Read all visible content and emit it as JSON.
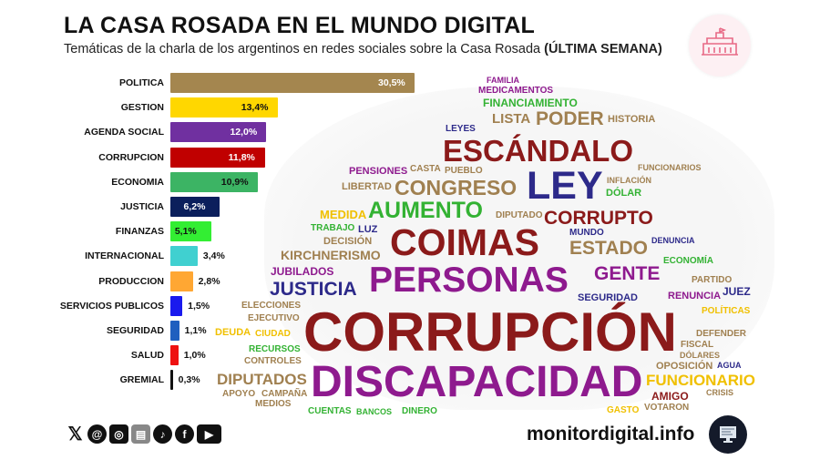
{
  "header": {
    "title": "LA CASA ROSADA EN EL MUNDO DIGITAL",
    "subtitle": "Temáticas de la charla de los argentinos en redes sociales sobre la Casa Rosada",
    "subtitle_bold": "(ÚLTIMA SEMANA)"
  },
  "chart_data": {
    "type": "bar",
    "orientation": "horizontal",
    "unit": "%",
    "categories": [
      "POLITICA",
      "GESTION",
      "AGENDA SOCIAL",
      "CORRUPCION",
      "ECONOMIA",
      "JUSTICIA",
      "FINANZAS",
      "INTERNACIONAL",
      "PRODUCCION",
      "SERVICIOS PUBLICOS",
      "SEGURIDAD",
      "SALUD",
      "GREMIAL"
    ],
    "values": [
      30.5,
      13.4,
      12.0,
      11.8,
      10.9,
      6.2,
      5.1,
      3.4,
      2.8,
      1.5,
      1.1,
      1.0,
      0.3
    ],
    "labels": [
      "30,5%",
      "13,4%",
      "12,0%",
      "11,8%",
      "10,9%",
      "6,2%",
      "5,1%",
      "3,4%",
      "2,8%",
      "1,5%",
      "1,1%",
      "1,0%",
      "0,3%"
    ],
    "colors": [
      "#a4864f",
      "#ffd700",
      "#7030a0",
      "#c00000",
      "#3cb464",
      "#0b1f5c",
      "#33ee33",
      "#40d0d0",
      "#ffa733",
      "#1a1aee",
      "#1f5fbf",
      "#ee1111",
      "#111111"
    ],
    "label_colors": [
      "#fff",
      "#111",
      "#fff",
      "#fff",
      "#111",
      "#fff",
      "#111",
      "#111",
      "#111",
      "#111",
      "#111",
      "#111",
      "#111"
    ],
    "grid": false,
    "legend": "none"
  },
  "wordcloud": {
    "words": [
      {
        "t": "CORRUPCIÓN",
        "c": "#8b1a1a"
      },
      {
        "t": "DISCAPACIDAD",
        "c": "#8e1a8e"
      },
      {
        "t": "PERSONAS",
        "c": "#8e1a8e"
      },
      {
        "t": "COIMAS",
        "c": "#8b1a1a"
      },
      {
        "t": "LEY",
        "c": "#2d2a8a"
      },
      {
        "t": "ESCÁNDALO",
        "c": "#8b1a1a"
      },
      {
        "t": "CONGRESO",
        "c": "#a08050"
      },
      {
        "t": "AUMENTO",
        "c": "#33b233"
      },
      {
        "t": "CORRUPTO",
        "c": "#8b1a1a"
      },
      {
        "t": "ESTADO",
        "c": "#a08050"
      },
      {
        "t": "GENTE",
        "c": "#8e1a8e"
      },
      {
        "t": "PODER",
        "c": "#a08050"
      },
      {
        "t": "JUSTICIA",
        "c": "#2d2a8a"
      },
      {
        "t": "KIRCHNERISMO",
        "c": "#a08050"
      },
      {
        "t": "JUBILADOS",
        "c": "#8e1a8e"
      },
      {
        "t": "DIPUTADOS",
        "c": "#a08050"
      },
      {
        "t": "FUNCIONARIO",
        "c": "#f0c000"
      },
      {
        "t": "FINANCIAMIENTO",
        "c": "#33b233"
      },
      {
        "t": "LISTA",
        "c": "#a08050"
      },
      {
        "t": "MEDICAMENTOS",
        "c": "#8e1a8e"
      },
      {
        "t": "HISTORIA",
        "c": "#a08050"
      },
      {
        "t": "PENSIONES",
        "c": "#8e1a8e"
      },
      {
        "t": "LIBERTAD",
        "c": "#a08050"
      },
      {
        "t": "MEDIDA",
        "c": "#f0c000"
      },
      {
        "t": "DECISIÓN",
        "c": "#a08050"
      },
      {
        "t": "ELECCIONES",
        "c": "#a08050"
      },
      {
        "t": "EJECUTIVO",
        "c": "#a08050"
      },
      {
        "t": "CIUDAD",
        "c": "#f0c000"
      },
      {
        "t": "RECURSOS",
        "c": "#33b233"
      },
      {
        "t": "CONTROLES",
        "c": "#a08050"
      },
      {
        "t": "CAMPAÑA",
        "c": "#a08050"
      },
      {
        "t": "MEDIOS",
        "c": "#a08050"
      },
      {
        "t": "APOYO",
        "c": "#a08050"
      },
      {
        "t": "AMIGO",
        "c": "#8b1a1a"
      },
      {
        "t": "OPOSICIÓN",
        "c": "#a08050"
      },
      {
        "t": "RENUNCIA",
        "c": "#8e1a8e"
      },
      {
        "t": "JUEZ",
        "c": "#2d2a8a"
      },
      {
        "t": "PARTIDO",
        "c": "#a08050"
      },
      {
        "t": "DEFENDER",
        "c": "#a08050"
      },
      {
        "t": "POLÍTICAS",
        "c": "#f0c000"
      },
      {
        "t": "DEUDA",
        "c": "#f0c000"
      },
      {
        "t": "LUZ",
        "c": "#2d2a8a"
      },
      {
        "t": "SEGURIDAD",
        "c": "#2d2a8a"
      },
      {
        "t": "FAMILIA",
        "c": "#8e1a8e"
      },
      {
        "t": "LEYES",
        "c": "#2d2a8a"
      },
      {
        "t": "DÓLAR",
        "c": "#33b233"
      },
      {
        "t": "INFLACIÓN",
        "c": "#a08050"
      },
      {
        "t": "TRABAJO",
        "c": "#33b233"
      },
      {
        "t": "DIPUTADO",
        "c": "#a08050"
      },
      {
        "t": "PUEBLO",
        "c": "#a08050"
      },
      {
        "t": "CASTA",
        "c": "#a08050"
      },
      {
        "t": "FUNCIONARIOS",
        "c": "#a08050"
      },
      {
        "t": "DENUNCIA",
        "c": "#2d2a8a"
      },
      {
        "t": "MUNDO",
        "c": "#2d2a8a"
      },
      {
        "t": "ECONOMÍA",
        "c": "#33b233"
      },
      {
        "t": "CRISIS",
        "c": "#a08050"
      },
      {
        "t": "AGUA",
        "c": "#2d2a8a"
      },
      {
        "t": "DÓLARES",
        "c": "#a08050"
      },
      {
        "t": "VOTARON",
        "c": "#a08050"
      },
      {
        "t": "CUENTAS",
        "c": "#33b233"
      },
      {
        "t": "BANCOS",
        "c": "#33b233"
      },
      {
        "t": "DINERO",
        "c": "#33b233"
      },
      {
        "t": "FISCAL",
        "c": "#a08050"
      },
      {
        "t": "GASTO",
        "c": "#f0c000"
      }
    ]
  },
  "footer": {
    "social_icons": [
      "x-icon",
      "threads-icon",
      "instagram-icon",
      "news-icon",
      "tiktok-icon",
      "facebook-icon",
      "youtube-icon"
    ],
    "site": "monitordigital.info"
  }
}
